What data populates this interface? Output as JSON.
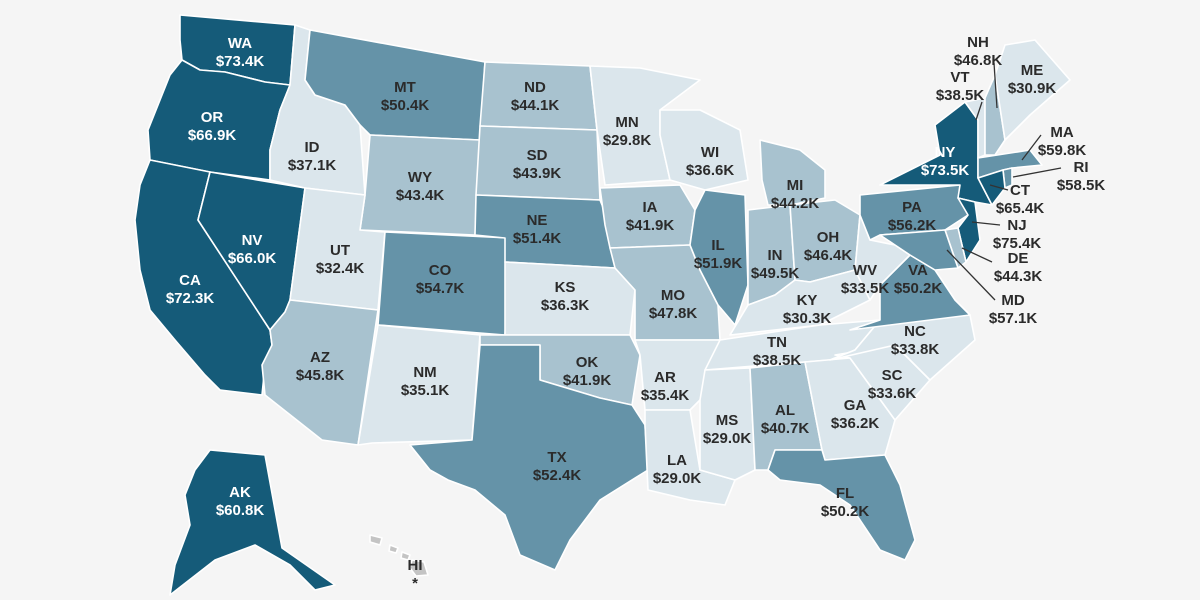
{
  "colors": {
    "level1": "#dbe6ec",
    "level2": "#a8c2cf",
    "level3": "#6593a8",
    "level4": "#155b79",
    "hi": "#c4c4c4",
    "background": "#f5f5f5",
    "dark_text": "#2b2b2b",
    "light_text": "#ffffff"
  },
  "states": [
    {
      "abbr": "WA",
      "value": "$73.4K",
      "level": 4
    },
    {
      "abbr": "OR",
      "value": "$66.9K",
      "level": 4
    },
    {
      "abbr": "CA",
      "value": "$72.3K",
      "level": 4
    },
    {
      "abbr": "NV",
      "value": "$66.0K",
      "level": 4
    },
    {
      "abbr": "ID",
      "value": "$37.1K",
      "level": 1
    },
    {
      "abbr": "MT",
      "value": "$50.4K",
      "level": 3
    },
    {
      "abbr": "WY",
      "value": "$43.4K",
      "level": 2
    },
    {
      "abbr": "UT",
      "value": "$32.4K",
      "level": 1
    },
    {
      "abbr": "AZ",
      "value": "$45.8K",
      "level": 2
    },
    {
      "abbr": "CO",
      "value": "$54.7K",
      "level": 3
    },
    {
      "abbr": "NM",
      "value": "$35.1K",
      "level": 1
    },
    {
      "abbr": "ND",
      "value": "$44.1K",
      "level": 2
    },
    {
      "abbr": "SD",
      "value": "$43.9K",
      "level": 2
    },
    {
      "abbr": "NE",
      "value": "$51.4K",
      "level": 3
    },
    {
      "abbr": "KS",
      "value": "$36.3K",
      "level": 1
    },
    {
      "abbr": "OK",
      "value": "$41.9K",
      "level": 2
    },
    {
      "abbr": "TX",
      "value": "$52.4K",
      "level": 3
    },
    {
      "abbr": "MN",
      "value": "$29.8K",
      "level": 1
    },
    {
      "abbr": "IA",
      "value": "$41.9K",
      "level": 2
    },
    {
      "abbr": "MO",
      "value": "$47.8K",
      "level": 2
    },
    {
      "abbr": "AR",
      "value": "$35.4K",
      "level": 1
    },
    {
      "abbr": "LA",
      "value": "$29.0K",
      "level": 1
    },
    {
      "abbr": "WI",
      "value": "$36.6K",
      "level": 1
    },
    {
      "abbr": "IL",
      "value": "$51.9K",
      "level": 3
    },
    {
      "abbr": "MI",
      "value": "$44.2K",
      "level": 2
    },
    {
      "abbr": "IN",
      "value": "$49.5K",
      "level": 2
    },
    {
      "abbr": "OH",
      "value": "$46.4K",
      "level": 2
    },
    {
      "abbr": "KY",
      "value": "$30.3K",
      "level": 1
    },
    {
      "abbr": "TN",
      "value": "$38.5K",
      "level": 1
    },
    {
      "abbr": "MS",
      "value": "$29.0K",
      "level": 1
    },
    {
      "abbr": "AL",
      "value": "$40.7K",
      "level": 2
    },
    {
      "abbr": "GA",
      "value": "$36.2K",
      "level": 1
    },
    {
      "abbr": "FL",
      "value": "$50.2K",
      "level": 3
    },
    {
      "abbr": "SC",
      "value": "$33.6K",
      "level": 1
    },
    {
      "abbr": "NC",
      "value": "$33.8K",
      "level": 1
    },
    {
      "abbr": "VA",
      "value": "$50.2K",
      "level": 3
    },
    {
      "abbr": "WV",
      "value": "$33.5K",
      "level": 1
    },
    {
      "abbr": "PA",
      "value": "$56.2K",
      "level": 3
    },
    {
      "abbr": "NY",
      "value": "$73.5K",
      "level": 4
    },
    {
      "abbr": "VT",
      "value": "$38.5K",
      "level": 1
    },
    {
      "abbr": "NH",
      "value": "$46.8K",
      "level": 2
    },
    {
      "abbr": "ME",
      "value": "$30.9K",
      "level": 1
    },
    {
      "abbr": "MA",
      "value": "$59.8K",
      "level": 3
    },
    {
      "abbr": "RI",
      "value": "$58.5K",
      "level": 3
    },
    {
      "abbr": "CT",
      "value": "$65.4K",
      "level": 4
    },
    {
      "abbr": "NJ",
      "value": "$75.4K",
      "level": 4
    },
    {
      "abbr": "DE",
      "value": "$44.3K",
      "level": 2
    },
    {
      "abbr": "MD",
      "value": "$57.1K",
      "level": 3
    },
    {
      "abbr": "AK",
      "value": "$60.8K",
      "level": 4
    },
    {
      "abbr": "HI",
      "value": "*",
      "level": 0
    }
  ]
}
